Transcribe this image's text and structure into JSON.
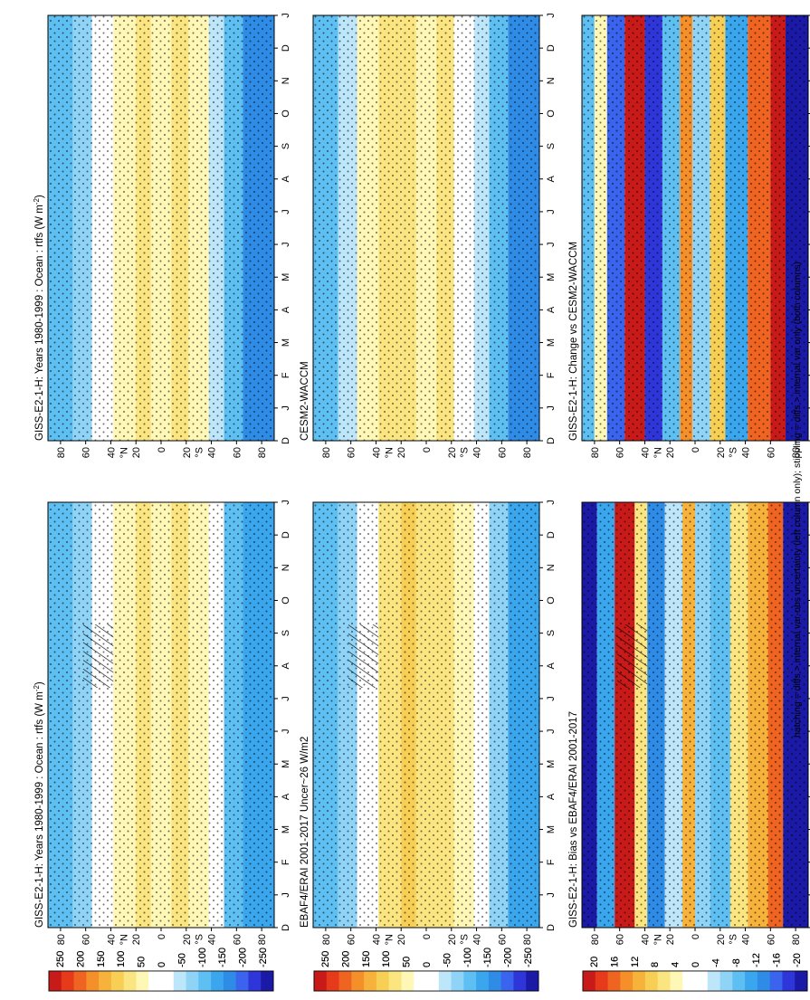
{
  "page": {
    "footnote": "hatching = diffs > internal var-obs uncertainty (left column only); stippling = diffs > internal var only (both columns)"
  },
  "palette": {
    "divergent": [
      "#1a1aa6",
      "#2e36d9",
      "#3a63ee",
      "#2f8ce6",
      "#3aa6ee",
      "#5ec0f2",
      "#8fd4f6",
      "#bde6fa",
      "#ffffff",
      "#ffffff",
      "#fff7b5",
      "#fbe580",
      "#f8cf55",
      "#f6b23a",
      "#f48f2a",
      "#ef6420",
      "#e63a1a",
      "#c81a18"
    ]
  },
  "colorbars": {
    "abs": {
      "labels": [
        "250",
        "200",
        "150",
        "100",
        "50",
        "0",
        "-50",
        "-100",
        "-150",
        "-200",
        "-250"
      ]
    },
    "diff": {
      "labels": [
        "20",
        "16",
        "12",
        "8",
        "4",
        "0",
        "-4",
        "-8",
        "-12",
        "-16",
        "-20"
      ]
    }
  },
  "axes": {
    "months": [
      "D",
      "J",
      "F",
      "M",
      "A",
      "M",
      "J",
      "J",
      "A",
      "S",
      "O",
      "N",
      "D",
      "J"
    ],
    "lat_ticks": [
      "80",
      "60",
      "40",
      "20",
      "0",
      "20",
      "40",
      "60",
      "80"
    ],
    "hemi_n": "N",
    "hemi_s": "S",
    "deg": "°"
  },
  "chart_data": [
    {
      "type": "heatmap",
      "title": "GISS-E2-1-H: Years 1980-1999 : Ocean : rtfs (W m",
      "title_sup": "-2",
      "title_tail": ")",
      "x": "month",
      "y": "latitude",
      "scale": "abs",
      "bands": [
        {
          "lat_from": 90,
          "lat_to": 70,
          "level": -100
        },
        {
          "lat_from": 70,
          "lat_to": 55,
          "level": -75
        },
        {
          "lat_from": 55,
          "lat_to": 38,
          "level": -10
        },
        {
          "lat_from": 38,
          "lat_to": 20,
          "level": 40
        },
        {
          "lat_from": 20,
          "lat_to": 8,
          "level": 70
        },
        {
          "lat_from": 8,
          "lat_to": -8,
          "level": 55
        },
        {
          "lat_from": -8,
          "lat_to": -22,
          "level": 70
        },
        {
          "lat_from": -22,
          "lat_to": -38,
          "level": 30
        },
        {
          "lat_from": -38,
          "lat_to": -50,
          "level": -20
        },
        {
          "lat_from": -50,
          "lat_to": -65,
          "level": -90
        },
        {
          "lat_from": -65,
          "lat_to": -90,
          "level": -130
        }
      ]
    },
    {
      "type": "heatmap",
      "title": "GISS-E2-1-H: Years 1980-1999 : Ocean : rtfs (W m",
      "title_sup": "-2",
      "title_tail": ")",
      "x": "month",
      "y": "latitude",
      "scale": "abs",
      "bands": [
        {
          "lat_from": 90,
          "lat_to": 70,
          "level": -110
        },
        {
          "lat_from": 70,
          "lat_to": 55,
          "level": -60
        },
        {
          "lat_from": 55,
          "lat_to": 38,
          "level": 0
        },
        {
          "lat_from": 38,
          "lat_to": 20,
          "level": 45
        },
        {
          "lat_from": 20,
          "lat_to": 8,
          "level": 70
        },
        {
          "lat_from": 8,
          "lat_to": -8,
          "level": 50
        },
        {
          "lat_from": -8,
          "lat_to": -22,
          "level": 75
        },
        {
          "lat_from": -22,
          "lat_to": -38,
          "level": 30
        },
        {
          "lat_from": -38,
          "lat_to": -50,
          "level": -30
        },
        {
          "lat_from": -50,
          "lat_to": -65,
          "level": -100
        },
        {
          "lat_from": -65,
          "lat_to": -90,
          "level": -140
        }
      ]
    },
    {
      "type": "heatmap",
      "title": "EBAF4/ERAI 2001-2017 Uncer~26 W/m2",
      "title_sup": "",
      "title_tail": "",
      "x": "month",
      "y": "latitude",
      "scale": "abs",
      "bands": [
        {
          "lat_from": 90,
          "lat_to": 70,
          "level": -90
        },
        {
          "lat_from": 70,
          "lat_to": 55,
          "level": -70
        },
        {
          "lat_from": 55,
          "lat_to": 38,
          "level": 20
        },
        {
          "lat_from": 38,
          "lat_to": 20,
          "level": 80
        },
        {
          "lat_from": 20,
          "lat_to": 8,
          "level": 90
        },
        {
          "lat_from": 8,
          "lat_to": -8,
          "level": 60
        },
        {
          "lat_from": -8,
          "lat_to": -22,
          "level": 80
        },
        {
          "lat_from": -22,
          "lat_to": -38,
          "level": 40
        },
        {
          "lat_from": -38,
          "lat_to": -50,
          "level": -20
        },
        {
          "lat_from": -50,
          "lat_to": -65,
          "level": -80
        },
        {
          "lat_from": -65,
          "lat_to": -90,
          "level": -120
        }
      ]
    },
    {
      "type": "heatmap",
      "title": "CESM2-WACCM",
      "title_sup": "",
      "title_tail": "",
      "x": "month",
      "y": "latitude",
      "scale": "abs",
      "bands": [
        {
          "lat_from": 90,
          "lat_to": 70,
          "level": -100
        },
        {
          "lat_from": 70,
          "lat_to": 55,
          "level": -30
        },
        {
          "lat_from": 55,
          "lat_to": 38,
          "level": 30
        },
        {
          "lat_from": 38,
          "lat_to": 20,
          "level": 60
        },
        {
          "lat_from": 20,
          "lat_to": 8,
          "level": 75
        },
        {
          "lat_from": 8,
          "lat_to": -8,
          "level": 55
        },
        {
          "lat_from": -8,
          "lat_to": -22,
          "level": 70
        },
        {
          "lat_from": -22,
          "lat_to": -38,
          "level": 25
        },
        {
          "lat_from": -38,
          "lat_to": -50,
          "level": -40
        },
        {
          "lat_from": -50,
          "lat_to": -65,
          "level": -110
        },
        {
          "lat_from": -65,
          "lat_to": -90,
          "level": -150
        }
      ]
    },
    {
      "type": "heatmap",
      "title": "GISS-E2-1-H: Bias vs EBAF4/ERAI 2001-2017",
      "title_sup": "",
      "title_tail": "",
      "x": "month",
      "y": "latitude",
      "scale": "diff",
      "bands": [
        {
          "lat_from": 90,
          "lat_to": 78,
          "level": -18
        },
        {
          "lat_from": 78,
          "lat_to": 64,
          "level": -10
        },
        {
          "lat_from": 64,
          "lat_to": 48,
          "level": 18
        },
        {
          "lat_from": 48,
          "lat_to": 38,
          "level": 6
        },
        {
          "lat_from": 38,
          "lat_to": 24,
          "level": -12
        },
        {
          "lat_from": 24,
          "lat_to": 10,
          "level": -4
        },
        {
          "lat_from": 10,
          "lat_to": 0,
          "level": 10
        },
        {
          "lat_from": 0,
          "lat_to": -12,
          "level": -6
        },
        {
          "lat_from": -12,
          "lat_to": -28,
          "level": -8
        },
        {
          "lat_from": -28,
          "lat_to": -42,
          "level": 6
        },
        {
          "lat_from": -42,
          "lat_to": -58,
          "level": 10
        },
        {
          "lat_from": -58,
          "lat_to": -70,
          "level": 14
        },
        {
          "lat_from": -70,
          "lat_to": -90,
          "level": -18
        }
      ]
    },
    {
      "type": "heatmap",
      "title": "GISS-E2-1-H: Change vs CESM2-WACCM",
      "title_sup": "",
      "title_tail": "",
      "x": "month",
      "y": "latitude",
      "scale": "diff",
      "bands": [
        {
          "lat_from": 90,
          "lat_to": 80,
          "level": -8
        },
        {
          "lat_from": 80,
          "lat_to": 70,
          "level": 4
        },
        {
          "lat_from": 70,
          "lat_to": 56,
          "level": -14
        },
        {
          "lat_from": 56,
          "lat_to": 40,
          "level": 18
        },
        {
          "lat_from": 40,
          "lat_to": 26,
          "level": -16
        },
        {
          "lat_from": 26,
          "lat_to": 12,
          "level": -8
        },
        {
          "lat_from": 12,
          "lat_to": 2,
          "level": 12
        },
        {
          "lat_from": 2,
          "lat_to": -12,
          "level": -6
        },
        {
          "lat_from": -12,
          "lat_to": -24,
          "level": 8
        },
        {
          "lat_from": -24,
          "lat_to": -42,
          "level": -10
        },
        {
          "lat_from": -42,
          "lat_to": -60,
          "level": 14
        },
        {
          "lat_from": -60,
          "lat_to": -72,
          "level": 18
        },
        {
          "lat_from": -72,
          "lat_to": -90,
          "level": -20
        }
      ]
    }
  ]
}
